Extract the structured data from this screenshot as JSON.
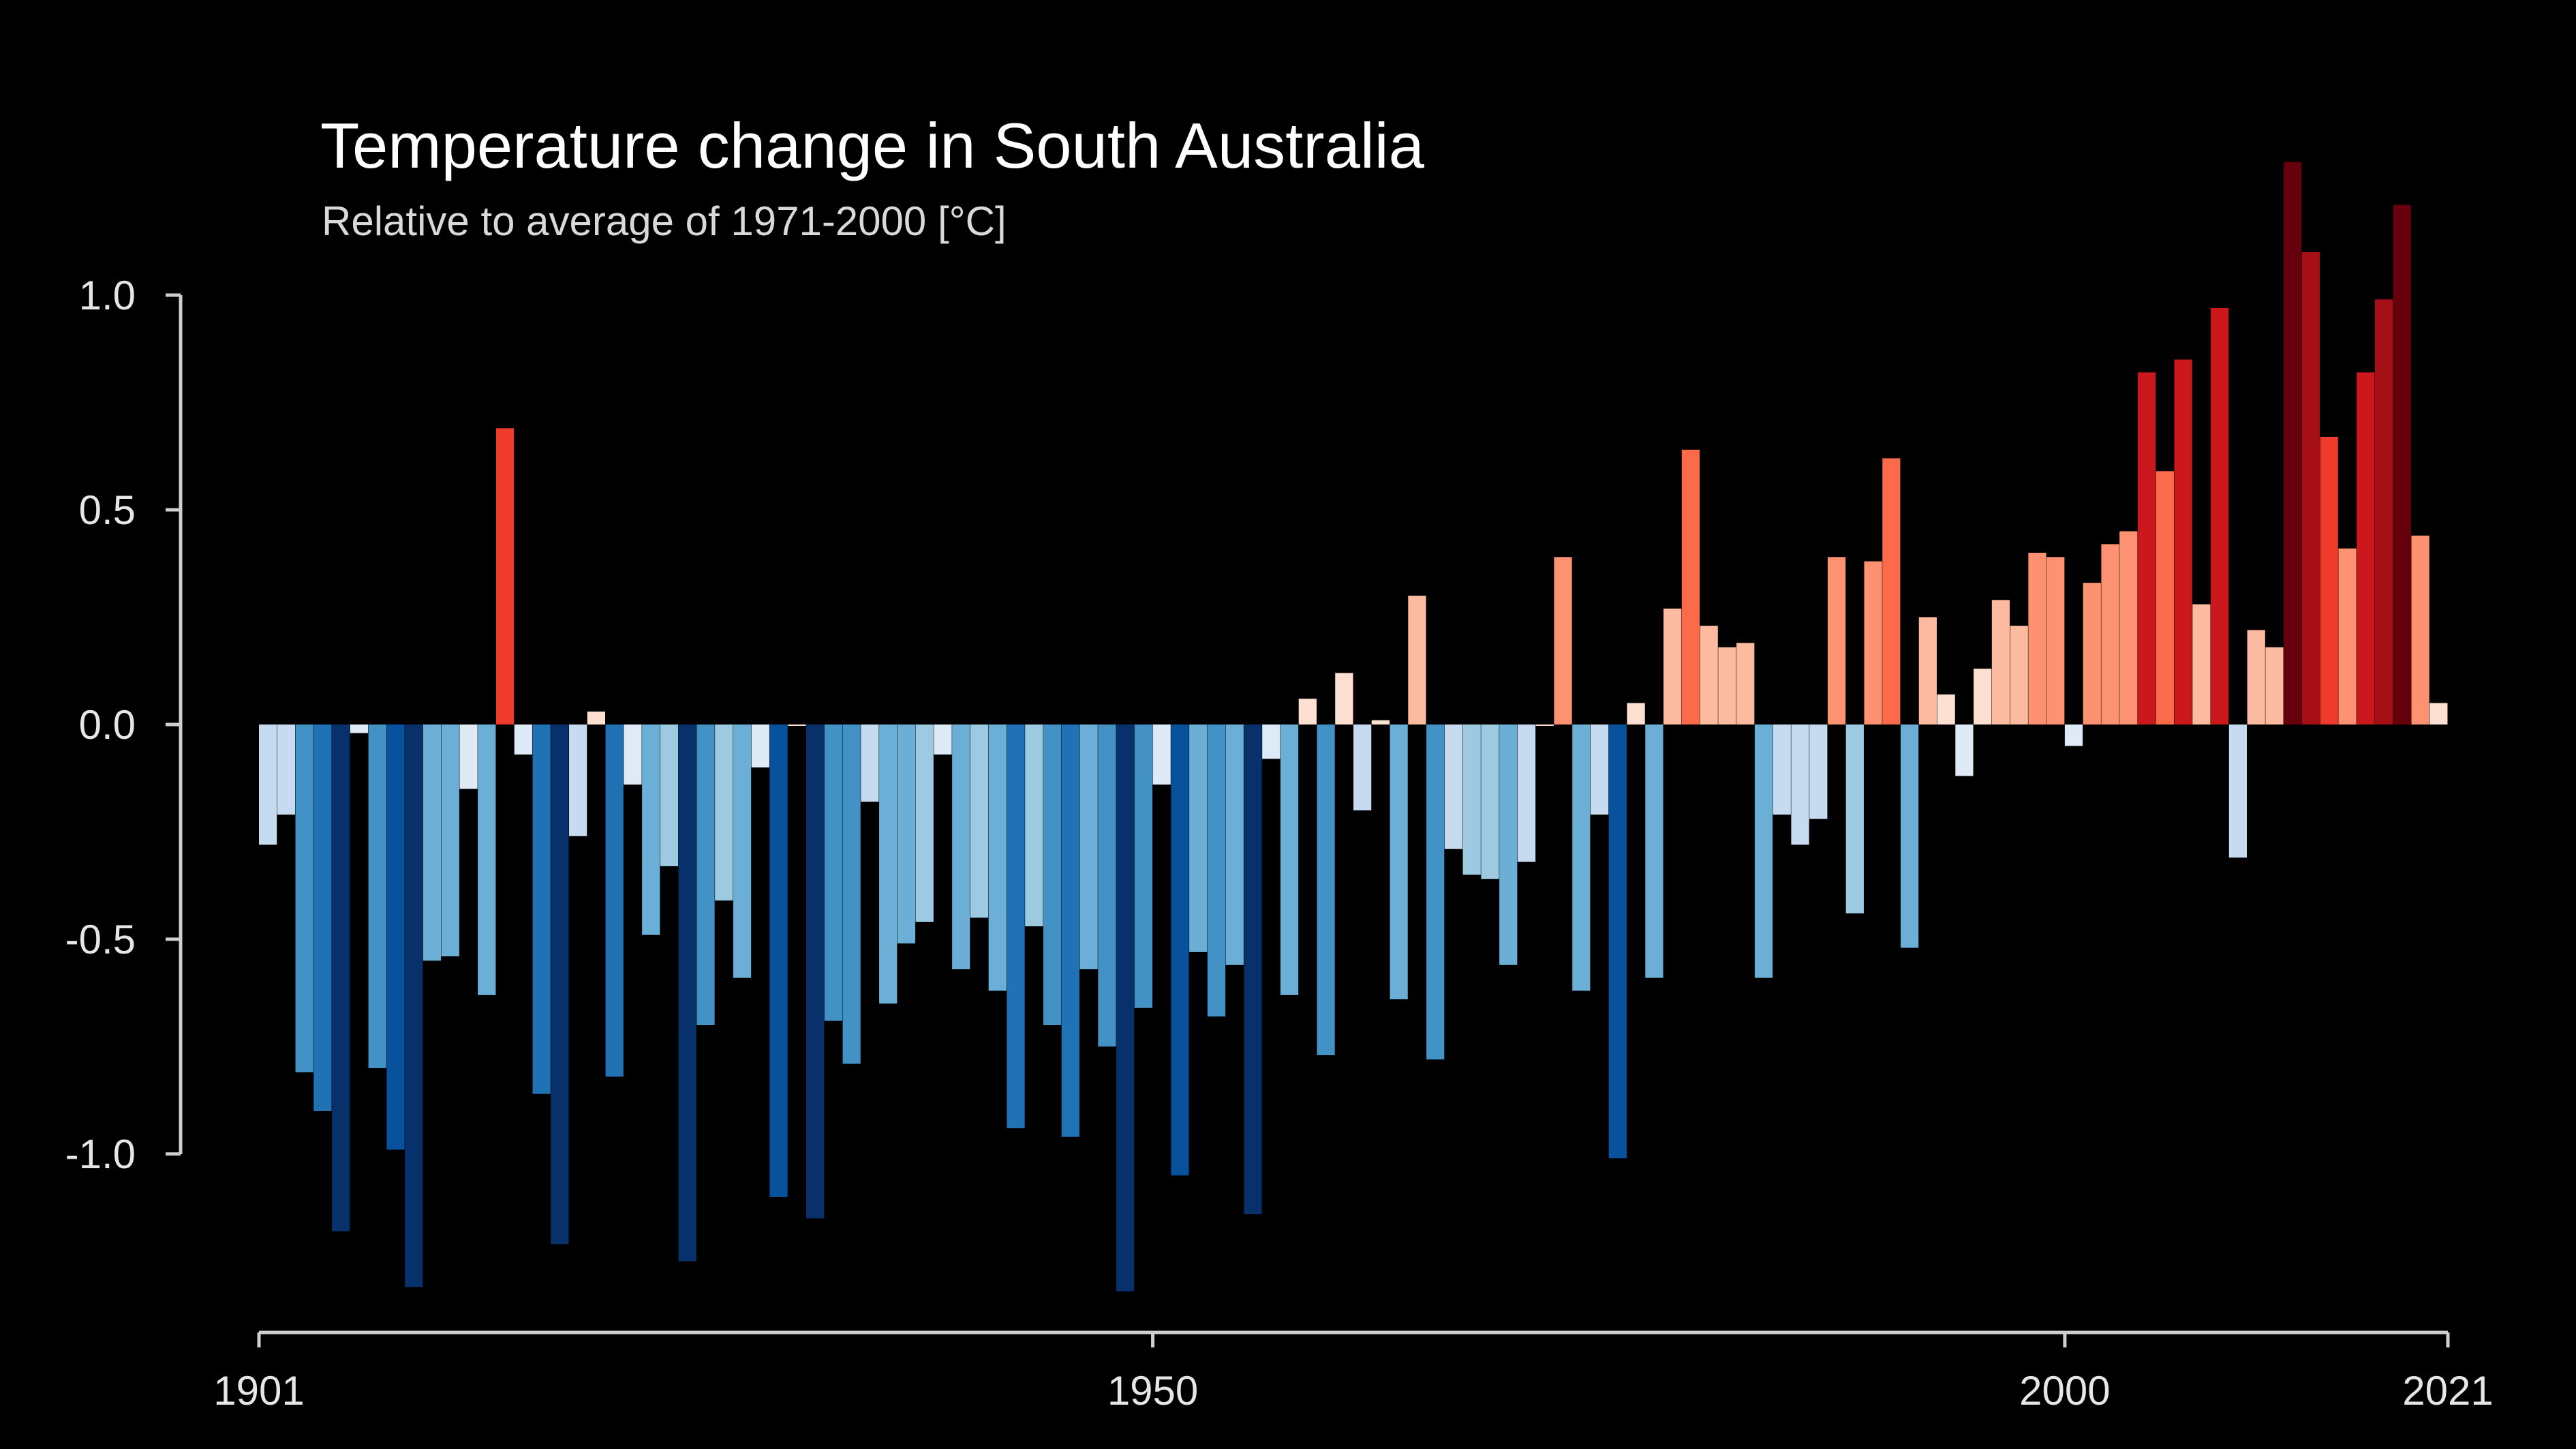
{
  "chart_data": {
    "type": "bar",
    "title": "Temperature change in South Australia",
    "subtitle": "Relative to average of 1971-2000  [°C]",
    "xlabel": "",
    "ylabel": "",
    "x_start": 1901,
    "x_end": 2021,
    "xlim": [
      1901,
      2021
    ],
    "ylim": [
      -1.4,
      1.3
    ],
    "yticks": [
      {
        "value": 1.0,
        "label": "1.0"
      },
      {
        "value": 0.5,
        "label": "0.5"
      },
      {
        "value": 0.0,
        "label": "0.0"
      },
      {
        "value": -0.5,
        "label": "-0.5"
      },
      {
        "value": -1.0,
        "label": "-1.0"
      }
    ],
    "xticks": [
      {
        "value": 1901,
        "label": "1901"
      },
      {
        "value": 1950,
        "label": "1950"
      },
      {
        "value": 2000,
        "label": "2000"
      },
      {
        "value": 2021,
        "label": "2021"
      }
    ],
    "grid": false,
    "legend": "none",
    "bars": [
      {
        "year": 1901,
        "value": -0.28
      },
      {
        "year": 1902,
        "value": -0.21
      },
      {
        "year": 1903,
        "value": -0.81
      },
      {
        "year": 1904,
        "value": -0.9
      },
      {
        "year": 1905,
        "value": -1.18
      },
      {
        "year": 1906,
        "value": -0.02
      },
      {
        "year": 1907,
        "value": -0.8
      },
      {
        "year": 1908,
        "value": -0.99
      },
      {
        "year": 1909,
        "value": -1.31
      },
      {
        "year": 1910,
        "value": -0.55
      },
      {
        "year": 1911,
        "value": -0.54
      },
      {
        "year": 1912,
        "value": -0.15
      },
      {
        "year": 1913,
        "value": -0.63
      },
      {
        "year": 1914,
        "value": 0.69
      },
      {
        "year": 1915,
        "value": -0.07
      },
      {
        "year": 1916,
        "value": -0.86
      },
      {
        "year": 1917,
        "value": -1.21
      },
      {
        "year": 1918,
        "value": -0.26
      },
      {
        "year": 1919,
        "value": 0.03
      },
      {
        "year": 1920,
        "value": -0.82
      },
      {
        "year": 1921,
        "value": -0.14
      },
      {
        "year": 1922,
        "value": -0.49
      },
      {
        "year": 1923,
        "value": -0.33
      },
      {
        "year": 1924,
        "value": -1.25
      },
      {
        "year": 1925,
        "value": -0.7
      },
      {
        "year": 1926,
        "value": -0.41
      },
      {
        "year": 1927,
        "value": -0.59
      },
      {
        "year": 1928,
        "value": -0.1
      },
      {
        "year": 1929,
        "value": -1.1
      },
      {
        "year": 1930,
        "value": 0.0
      },
      {
        "year": 1931,
        "value": -1.15
      },
      {
        "year": 1932,
        "value": -0.69
      },
      {
        "year": 1933,
        "value": -0.79
      },
      {
        "year": 1934,
        "value": -0.18
      },
      {
        "year": 1935,
        "value": -0.65
      },
      {
        "year": 1936,
        "value": -0.51
      },
      {
        "year": 1937,
        "value": -0.46
      },
      {
        "year": 1938,
        "value": -0.07
      },
      {
        "year": 1939,
        "value": -0.57
      },
      {
        "year": 1940,
        "value": -0.45
      },
      {
        "year": 1941,
        "value": -0.62
      },
      {
        "year": 1942,
        "value": -0.94
      },
      {
        "year": 1943,
        "value": -0.47
      },
      {
        "year": 1944,
        "value": -0.7
      },
      {
        "year": 1945,
        "value": -0.96
      },
      {
        "year": 1946,
        "value": -0.57
      },
      {
        "year": 1947,
        "value": -0.75
      },
      {
        "year": 1948,
        "value": -1.32
      },
      {
        "year": 1949,
        "value": -0.66
      },
      {
        "year": 1950,
        "value": -0.14
      },
      {
        "year": 1951,
        "value": -1.05
      },
      {
        "year": 1952,
        "value": -0.53
      },
      {
        "year": 1953,
        "value": -0.68
      },
      {
        "year": 1954,
        "value": -0.56
      },
      {
        "year": 1955,
        "value": -1.14
      },
      {
        "year": 1956,
        "value": -0.08
      },
      {
        "year": 1957,
        "value": -0.63
      },
      {
        "year": 1958,
        "value": 0.06
      },
      {
        "year": 1959,
        "value": -0.77
      },
      {
        "year": 1960,
        "value": 0.12
      },
      {
        "year": 1961,
        "value": -0.2
      },
      {
        "year": 1962,
        "value": 0.01
      },
      {
        "year": 1963,
        "value": -0.64
      },
      {
        "year": 1964,
        "value": 0.3
      },
      {
        "year": 1965,
        "value": -0.78
      },
      {
        "year": 1966,
        "value": -0.29
      },
      {
        "year": 1967,
        "value": -0.35
      },
      {
        "year": 1968,
        "value": -0.36
      },
      {
        "year": 1969,
        "value": -0.56
      },
      {
        "year": 1970,
        "value": -0.32
      },
      {
        "year": 1971,
        "value": 0.0
      },
      {
        "year": 1972,
        "value": 0.39
      },
      {
        "year": 1973,
        "value": -0.62
      },
      {
        "year": 1974,
        "value": -0.21
      },
      {
        "year": 1975,
        "value": -1.01
      },
      {
        "year": 1976,
        "value": 0.05
      },
      {
        "year": 1977,
        "value": -0.59
      },
      {
        "year": 1978,
        "value": 0.27
      },
      {
        "year": 1979,
        "value": 0.64
      },
      {
        "year": 1980,
        "value": 0.23
      },
      {
        "year": 1981,
        "value": 0.18
      },
      {
        "year": 1982,
        "value": 0.19
      },
      {
        "year": 1983,
        "value": -0.59
      },
      {
        "year": 1984,
        "value": -0.21
      },
      {
        "year": 1985,
        "value": -0.28
      },
      {
        "year": 1986,
        "value": -0.22
      },
      {
        "year": 1987,
        "value": 0.39
      },
      {
        "year": 1988,
        "value": -0.44
      },
      {
        "year": 1989,
        "value": 0.38
      },
      {
        "year": 1990,
        "value": 0.62
      },
      {
        "year": 1991,
        "value": -0.52
      },
      {
        "year": 1992,
        "value": 0.25
      },
      {
        "year": 1993,
        "value": 0.07
      },
      {
        "year": 1994,
        "value": -0.12
      },
      {
        "year": 1995,
        "value": 0.13
      },
      {
        "year": 1996,
        "value": 0.29
      },
      {
        "year": 1997,
        "value": 0.23
      },
      {
        "year": 1998,
        "value": 0.4
      },
      {
        "year": 1999,
        "value": 0.39
      },
      {
        "year": 2000,
        "value": -0.05
      },
      {
        "year": 2001,
        "value": 0.33
      },
      {
        "year": 2002,
        "value": 0.42
      },
      {
        "year": 2003,
        "value": 0.45
      },
      {
        "year": 2004,
        "value": 0.82
      },
      {
        "year": 2005,
        "value": 0.59
      },
      {
        "year": 2006,
        "value": 0.85
      },
      {
        "year": 2007,
        "value": 0.28
      },
      {
        "year": 2008,
        "value": 0.97
      },
      {
        "year": 2009,
        "value": -0.31
      },
      {
        "year": 2010,
        "value": 0.22
      },
      {
        "year": 2011,
        "value": 0.18
      },
      {
        "year": 2012,
        "value": 1.31
      },
      {
        "year": 2013,
        "value": 1.1
      },
      {
        "year": 2014,
        "value": 0.67
      },
      {
        "year": 2015,
        "value": 0.41
      },
      {
        "year": 2016,
        "value": 0.82
      },
      {
        "year": 2017,
        "value": 0.99
      },
      {
        "year": 2018,
        "value": 1.21
      },
      {
        "year": 2019,
        "value": 0.44
      },
      {
        "year": 2020,
        "value": 0.05
      }
    ],
    "color_scale": {
      "name": "warming stripes (RdBu)",
      "min": -1.3,
      "max": 1.3,
      "colors": [
        "#08306b",
        "#08519c",
        "#2171b5",
        "#4292c6",
        "#6baed6",
        "#9ecae1",
        "#c6dbef",
        "#deebf7",
        "#fee0d2",
        "#fcbba1",
        "#fc9272",
        "#fb6a4a",
        "#ef3b2c",
        "#cb181d",
        "#a50f15",
        "#67000d"
      ]
    }
  }
}
